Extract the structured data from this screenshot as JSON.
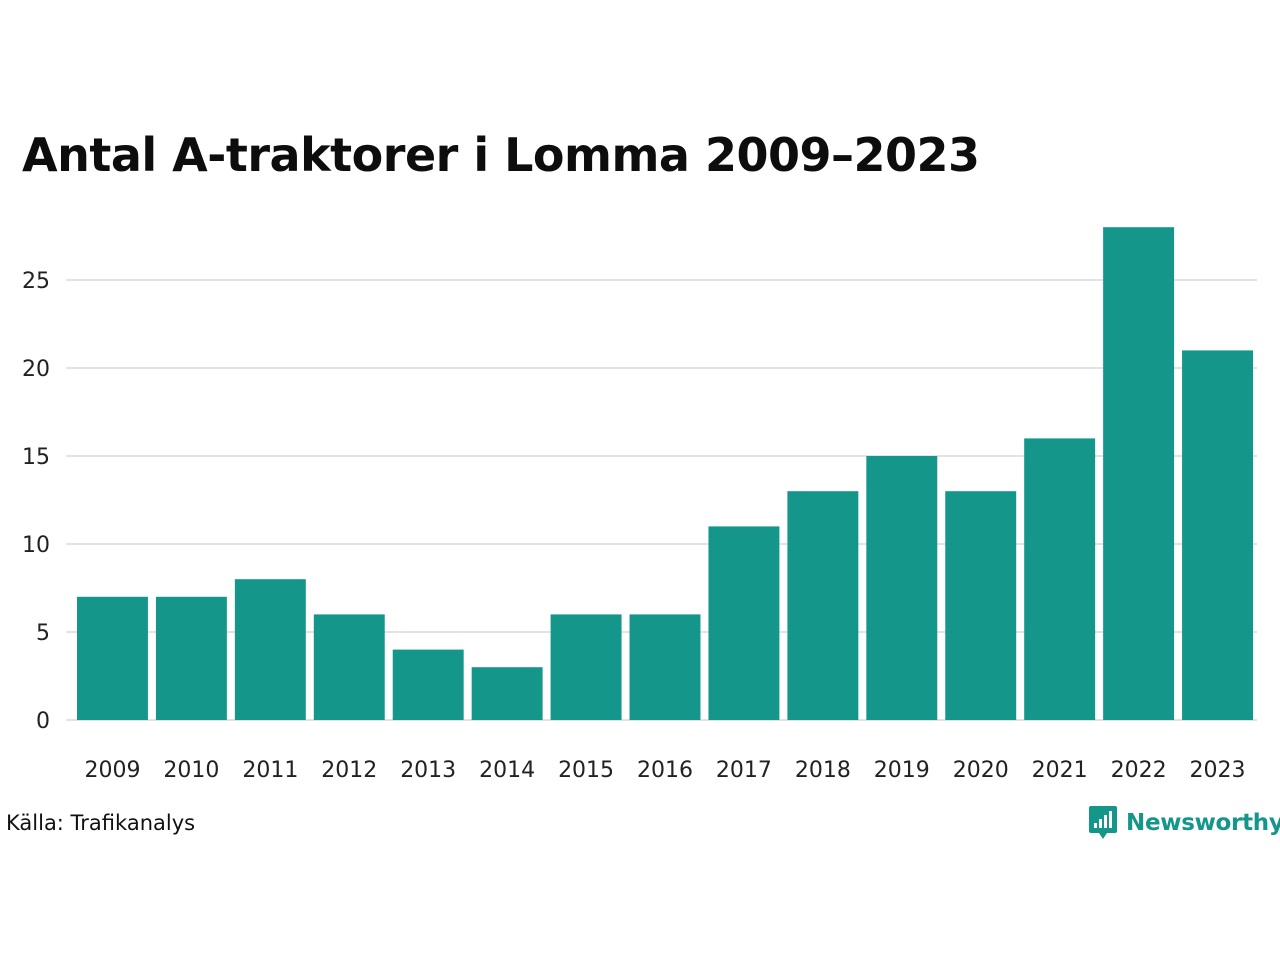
{
  "chart_data": {
    "type": "bar",
    "title": "Antal A-traktorer i Lomma 2009–2023",
    "categories": [
      "2009",
      "2010",
      "2011",
      "2012",
      "2013",
      "2014",
      "2015",
      "2016",
      "2017",
      "2018",
      "2019",
      "2020",
      "2021",
      "2022",
      "2023"
    ],
    "values": [
      7,
      7,
      8,
      6,
      4,
      3,
      6,
      6,
      11,
      13,
      15,
      13,
      16,
      28,
      21
    ],
    "xlabel": "",
    "ylabel": "",
    "ylim": [
      0,
      28
    ],
    "yticks": [
      0,
      5,
      10,
      15,
      20,
      25
    ],
    "grid": true,
    "bar_color": "#14968a",
    "grid_color": "#e3e3e3"
  },
  "footer": {
    "source": "Källa: Trafikanalys",
    "brand": "Newsworthy",
    "brand_color": "#14968a"
  }
}
